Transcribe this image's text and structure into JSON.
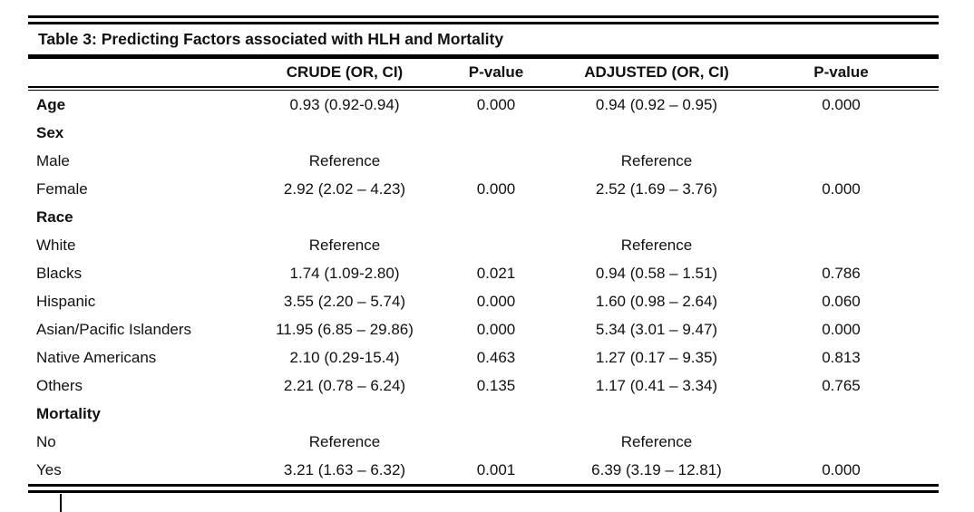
{
  "colors": {
    "background": "#ffffff",
    "text": "#111111",
    "rules": "#000000"
  },
  "cursor_icon": "text-caret",
  "table": {
    "title": "Table 3: Predicting Factors associated with HLH and Mortality",
    "columns": [
      "",
      "CRUDE (OR, CI)",
      "P-value",
      "ADJUSTED (OR, CI)",
      "P-value"
    ],
    "rows": [
      {
        "label": "Age",
        "bold": true,
        "crude": "0.93 (0.92-0.94)",
        "p1": "0.000",
        "adjusted": "0.94 (0.92 – 0.95)",
        "p2": "0.000"
      },
      {
        "label": "Sex",
        "bold": true,
        "crude": "",
        "p1": "",
        "adjusted": "",
        "p2": ""
      },
      {
        "label": "Male",
        "bold": false,
        "crude": "Reference",
        "p1": "",
        "adjusted": "Reference",
        "p2": ""
      },
      {
        "label": "Female",
        "bold": false,
        "crude": "2.92 (2.02 – 4.23)",
        "p1": "0.000",
        "adjusted": "2.52 (1.69 – 3.76)",
        "p2": "0.000"
      },
      {
        "label": "Race",
        "bold": true,
        "crude": "",
        "p1": "",
        "adjusted": "",
        "p2": ""
      },
      {
        "label": "White",
        "bold": false,
        "crude": "Reference",
        "p1": "",
        "adjusted": "Reference",
        "p2": ""
      },
      {
        "label": "Blacks",
        "bold": false,
        "crude": "1.74 (1.09-2.80)",
        "p1": "0.021",
        "adjusted": "0.94 (0.58 – 1.51)",
        "p2": "0.786"
      },
      {
        "label": "Hispanic",
        "bold": false,
        "crude": "3.55 (2.20 – 5.74)",
        "p1": "0.000",
        "adjusted": "1.60 (0.98 – 2.64)",
        "p2": "0.060"
      },
      {
        "label": "Asian/Pacific Islanders",
        "bold": false,
        "crude": "11.95 (6.85 – 29.86)",
        "p1": "0.000",
        "adjusted": "5.34 (3.01 – 9.47)",
        "p2": "0.000"
      },
      {
        "label": "Native Americans",
        "bold": false,
        "crude": "2.10 (0.29-15.4)",
        "p1": "0.463",
        "adjusted": "1.27 (0.17 – 9.35)",
        "p2": "0.813"
      },
      {
        "label": "Others",
        "bold": false,
        "crude": "2.21 (0.78 – 6.24)",
        "p1": "0.135",
        "adjusted": "1.17 (0.41 – 3.34)",
        "p2": "0.765"
      },
      {
        "label": "Mortality",
        "bold": true,
        "crude": "",
        "p1": "",
        "adjusted": "",
        "p2": ""
      },
      {
        "label": "No",
        "bold": false,
        "crude": "Reference",
        "p1": "",
        "adjusted": "Reference",
        "p2": ""
      },
      {
        "label": "Yes",
        "bold": false,
        "crude": "3.21 (1.63 – 6.32)",
        "p1": "0.001",
        "adjusted": "6.39 (3.19 – 12.81)",
        "p2": "0.000"
      }
    ]
  }
}
